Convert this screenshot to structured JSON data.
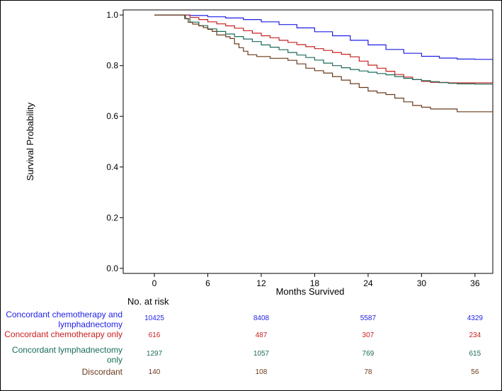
{
  "chart_data": {
    "type": "line",
    "subtype": "kaplan-meier",
    "xlabel": "Months Survived",
    "ylabel": "Survival Probability",
    "xticks": [
      0,
      6,
      12,
      18,
      24,
      30,
      36
    ],
    "yticks": [
      "0.0",
      "0.2",
      "0.4",
      "0.6",
      "0.8",
      "1.0"
    ],
    "xlim": [
      -3.5,
      38
    ],
    "ylim": [
      -0.02,
      1.02
    ],
    "series": [
      {
        "name": "Concordant chemotherapy and lymphadnectomy",
        "color": "#1f1fe6",
        "points": [
          [
            0,
            1.0
          ],
          [
            3,
            1.0
          ],
          [
            4,
            0.998
          ],
          [
            6,
            0.993
          ],
          [
            8,
            0.988
          ],
          [
            10,
            0.982
          ],
          [
            12,
            0.973
          ],
          [
            14,
            0.962
          ],
          [
            16,
            0.949
          ],
          [
            18,
            0.934
          ],
          [
            20,
            0.918
          ],
          [
            22,
            0.9
          ],
          [
            24,
            0.882
          ],
          [
            26,
            0.864
          ],
          [
            28,
            0.849
          ],
          [
            30,
            0.837
          ],
          [
            32,
            0.83
          ],
          [
            34,
            0.826
          ],
          [
            36,
            0.825
          ],
          [
            38,
            0.825
          ]
        ]
      },
      {
        "name": "Concordant chemotherapy only",
        "color": "#c81e1e",
        "points": [
          [
            0,
            1.0
          ],
          [
            3,
            1.0
          ],
          [
            4,
            0.99
          ],
          [
            5,
            0.982
          ],
          [
            6,
            0.973
          ],
          [
            7,
            0.965
          ],
          [
            8,
            0.957
          ],
          [
            9,
            0.948
          ],
          [
            10,
            0.938
          ],
          [
            11,
            0.928
          ],
          [
            12,
            0.918
          ],
          [
            13,
            0.91
          ],
          [
            14,
            0.9
          ],
          [
            15,
            0.892
          ],
          [
            16,
            0.883
          ],
          [
            17,
            0.875
          ],
          [
            18,
            0.867
          ],
          [
            19,
            0.86
          ],
          [
            20,
            0.852
          ],
          [
            21,
            0.845
          ],
          [
            22,
            0.835
          ],
          [
            23,
            0.818
          ],
          [
            24,
            0.802
          ],
          [
            25,
            0.79
          ],
          [
            26,
            0.778
          ],
          [
            27,
            0.765
          ],
          [
            28,
            0.755
          ],
          [
            29,
            0.745
          ],
          [
            30,
            0.738
          ],
          [
            31,
            0.734
          ],
          [
            33,
            0.732
          ],
          [
            38,
            0.732
          ]
        ]
      },
      {
        "name": "Concordant lymphadnectomy only",
        "color": "#1a6b5a",
        "points": [
          [
            0,
            1.0
          ],
          [
            3,
            1.0
          ],
          [
            3.5,
            0.985
          ],
          [
            4,
            0.972
          ],
          [
            5,
            0.958
          ],
          [
            6,
            0.945
          ],
          [
            7,
            0.935
          ],
          [
            8,
            0.925
          ],
          [
            9,
            0.915
          ],
          [
            10,
            0.905
          ],
          [
            11,
            0.895
          ],
          [
            12,
            0.882
          ],
          [
            13,
            0.873
          ],
          [
            14,
            0.863
          ],
          [
            15,
            0.852
          ],
          [
            16,
            0.842
          ],
          [
            17,
            0.832
          ],
          [
            18,
            0.822
          ],
          [
            19,
            0.81
          ],
          [
            20,
            0.8
          ],
          [
            21,
            0.792
          ],
          [
            22,
            0.785
          ],
          [
            23,
            0.779
          ],
          [
            24,
            0.774
          ],
          [
            25,
            0.769
          ],
          [
            26,
            0.764
          ],
          [
            27,
            0.757
          ],
          [
            28,
            0.75
          ],
          [
            29,
            0.745
          ],
          [
            30,
            0.741
          ],
          [
            31,
            0.737
          ],
          [
            32,
            0.733
          ],
          [
            33,
            0.73
          ],
          [
            34,
            0.728
          ],
          [
            36,
            0.727
          ],
          [
            38,
            0.727
          ]
        ]
      },
      {
        "name": "Discordant",
        "color": "#6b3a1c",
        "points": [
          [
            0,
            1.0
          ],
          [
            3,
            1.0
          ],
          [
            3.4,
            0.986
          ],
          [
            3.8,
            0.971
          ],
          [
            4.3,
            0.964
          ],
          [
            5,
            0.957
          ],
          [
            5.5,
            0.95
          ],
          [
            6,
            0.943
          ],
          [
            6.5,
            0.935
          ],
          [
            7,
            0.921
          ],
          [
            8,
            0.914
          ],
          [
            8.5,
            0.907
          ],
          [
            9,
            0.886
          ],
          [
            9.5,
            0.871
          ],
          [
            10,
            0.857
          ],
          [
            10.5,
            0.843
          ],
          [
            11.5,
            0.836
          ],
          [
            13,
            0.829
          ],
          [
            15,
            0.821
          ],
          [
            16,
            0.807
          ],
          [
            17,
            0.79
          ],
          [
            18,
            0.78
          ],
          [
            19,
            0.771
          ],
          [
            20,
            0.757
          ],
          [
            21,
            0.743
          ],
          [
            22,
            0.729
          ],
          [
            23,
            0.714
          ],
          [
            24,
            0.7
          ],
          [
            25,
            0.693
          ],
          [
            26,
            0.686
          ],
          [
            27,
            0.672
          ],
          [
            28,
            0.657
          ],
          [
            29,
            0.643
          ],
          [
            30,
            0.636
          ],
          [
            31,
            0.629
          ],
          [
            33,
            0.629
          ],
          [
            34,
            0.618
          ],
          [
            36,
            0.618
          ],
          [
            38,
            0.618
          ]
        ]
      }
    ],
    "risk_table": {
      "title": "No. at risk",
      "times": [
        0,
        12,
        24,
        36
      ],
      "rows": [
        {
          "label": "Concordant chemotherapy and lymphadnectomy",
          "color": "#1f1fe6",
          "values": [
            "10425",
            "8408",
            "5587",
            "4329"
          ]
        },
        {
          "label": "Concordant chemotherapy only",
          "color": "#c81e1e",
          "values": [
            "616",
            "487",
            "307",
            "234"
          ]
        },
        {
          "label": "Concordant lymphadnectomy only",
          "color": "#1a6b5a",
          "values": [
            "1297",
            "1057",
            "769",
            "615"
          ]
        },
        {
          "label": "Discordant",
          "color": "#6b3a1c",
          "values": [
            "140",
            "108",
            "78",
            "56"
          ]
        }
      ]
    }
  }
}
